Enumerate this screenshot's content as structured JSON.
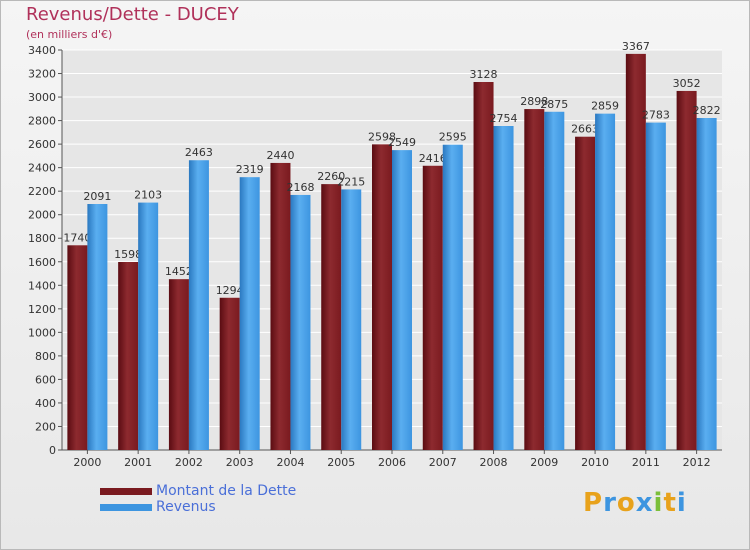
{
  "title": "Revenus/Dette - DUCEY",
  "subtitle": "(en milliers d'€)",
  "colors": {
    "dette": "#7a1a1f",
    "revenus": "#3d95e0",
    "title": "#b0315a",
    "legend_text": "#4a6fd8"
  },
  "legend": {
    "dette": "Montant de la Dette",
    "revenus": "Revenus"
  },
  "logo": "Proxiti",
  "chart_data": {
    "type": "bar",
    "title": "Revenus/Dette - DUCEY",
    "ylabel": "(en milliers d'€)",
    "xlabel": "",
    "categories": [
      "2000",
      "2001",
      "2002",
      "2003",
      "2004",
      "2005",
      "2006",
      "2007",
      "2008",
      "2009",
      "2010",
      "2011",
      "2012"
    ],
    "series": [
      {
        "name": "Montant de la Dette",
        "values": [
          1740,
          1598,
          1452,
          1294,
          2440,
          2260,
          2598,
          2416,
          3128,
          2898,
          2663,
          3367,
          3052
        ]
      },
      {
        "name": "Revenus",
        "values": [
          2091,
          2103,
          2463,
          2319,
          2168,
          2215,
          2549,
          2595,
          2754,
          2875,
          2859,
          2783,
          2822
        ]
      }
    ],
    "ylim": [
      0,
      3400
    ],
    "yticks": [
      0,
      200,
      400,
      600,
      800,
      1000,
      1200,
      1400,
      1600,
      1800,
      2000,
      2200,
      2400,
      2600,
      2800,
      3000,
      3200,
      3400
    ],
    "grid": true,
    "legend_position": "bottom-left"
  }
}
